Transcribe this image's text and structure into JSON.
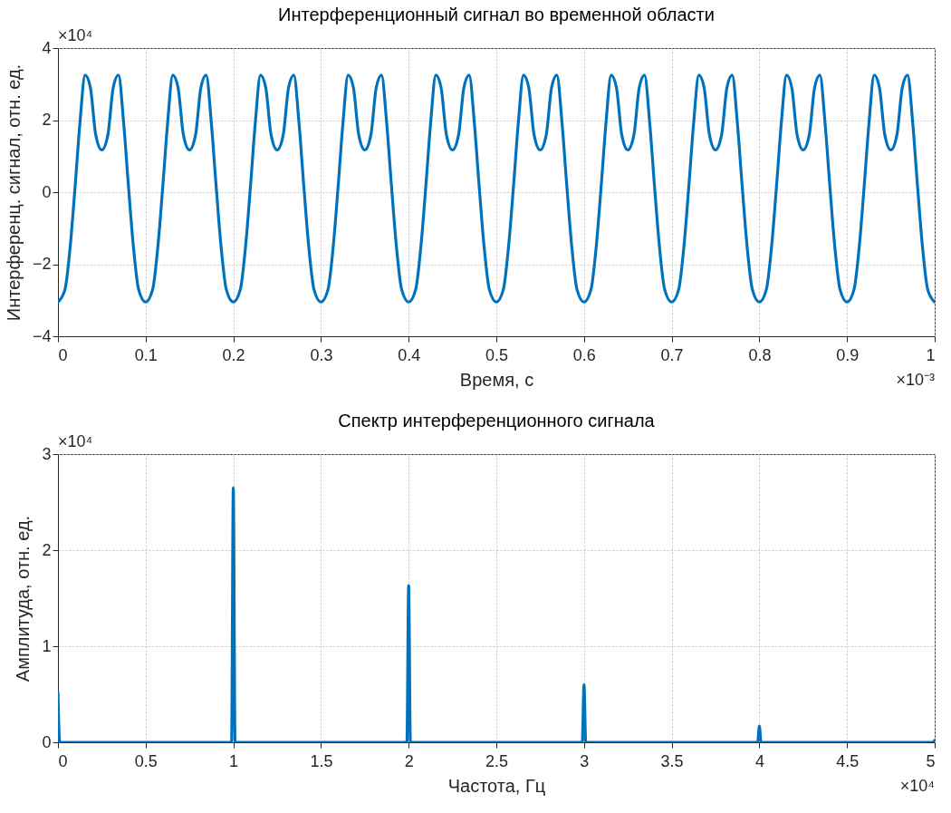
{
  "chart_data": [
    {
      "type": "line",
      "title": "Интерференционный сигнал во временной области",
      "xlabel": "Время, с",
      "ylabel": "Интерференц. сигнал, отн. ед.",
      "annotations": [
        "×10⁴",
        "×10⁻³"
      ],
      "xlim": [
        0,
        1
      ],
      "xticks": [
        0,
        0.1,
        0.2,
        0.3,
        0.4,
        0.5,
        0.6,
        0.7,
        0.8,
        0.9,
        1
      ],
      "ylim": [
        -4,
        4
      ],
      "yticks": [
        -4,
        -2,
        0,
        2,
        4
      ],
      "grid": true,
      "marker": "none",
      "line_style": "solid",
      "series": [
        {
          "color": "#0072bd",
          "x": [
            0,
            0.008,
            0.014,
            0.02,
            0.025,
            0.031,
            0.037,
            0.043,
            0.05,
            0.057,
            0.063,
            0.069,
            0.075,
            0.08,
            0.086,
            0.092,
            0.1,
            0.108,
            0.114,
            0.12,
            0.125,
            0.131,
            0.137,
            0.143,
            0.15,
            0.157,
            0.163,
            0.169,
            0.175,
            0.18,
            0.186,
            0.192,
            0.2,
            0.208,
            0.214,
            0.22,
            0.225,
            0.231,
            0.237,
            0.243,
            0.25,
            0.257,
            0.263,
            0.269,
            0.275,
            0.28,
            0.286,
            0.292,
            0.3,
            0.308,
            0.314,
            0.32,
            0.325,
            0.331,
            0.337,
            0.343,
            0.35,
            0.357,
            0.363,
            0.369,
            0.375,
            0.38,
            0.386,
            0.392,
            0.4,
            0.408,
            0.414,
            0.42,
            0.425,
            0.431,
            0.437,
            0.443,
            0.45,
            0.457,
            0.463,
            0.469,
            0.475,
            0.48,
            0.486,
            0.492,
            0.5,
            0.508,
            0.514,
            0.52,
            0.525,
            0.531,
            0.537,
            0.543,
            0.55,
            0.557,
            0.563,
            0.569,
            0.575,
            0.58,
            0.586,
            0.592,
            0.6,
            0.608,
            0.614,
            0.62,
            0.625,
            0.631,
            0.637,
            0.643,
            0.65,
            0.657,
            0.663,
            0.669,
            0.675,
            0.68,
            0.686,
            0.692,
            0.7,
            0.708,
            0.714,
            0.72,
            0.725,
            0.731,
            0.737,
            0.743,
            0.75,
            0.757,
            0.763,
            0.769,
            0.775,
            0.78,
            0.786,
            0.792,
            0.8,
            0.808,
            0.814,
            0.82,
            0.825,
            0.831,
            0.837,
            0.843,
            0.85,
            0.857,
            0.863,
            0.869,
            0.875,
            0.88,
            0.886,
            0.892,
            0.9,
            0.908,
            0.914,
            0.92,
            0.925,
            0.931,
            0.937,
            0.943,
            0.95,
            0.957,
            0.963,
            0.969,
            0.975,
            0.98,
            0.986,
            0.992,
            1
          ],
          "values": [
            -3.05,
            -2.7,
            -1.5,
            0.3,
            1.9,
            3.25,
            2.9,
            1.6,
            1.17,
            1.6,
            2.9,
            3.25,
            1.9,
            0.3,
            -1.5,
            -2.7,
            -3.05,
            -2.7,
            -1.5,
            0.3,
            1.9,
            3.25,
            2.9,
            1.6,
            1.17,
            1.6,
            2.9,
            3.25,
            1.9,
            0.3,
            -1.5,
            -2.7,
            -3.05,
            -2.7,
            -1.5,
            0.3,
            1.9,
            3.25,
            2.9,
            1.6,
            1.17,
            1.6,
            2.9,
            3.25,
            1.9,
            0.3,
            -1.5,
            -2.7,
            -3.05,
            -2.7,
            -1.5,
            0.3,
            1.9,
            3.25,
            2.9,
            1.6,
            1.17,
            1.6,
            2.9,
            3.25,
            1.9,
            0.3,
            -1.5,
            -2.7,
            -3.05,
            -2.7,
            -1.5,
            0.3,
            1.9,
            3.25,
            2.9,
            1.6,
            1.17,
            1.6,
            2.9,
            3.25,
            1.9,
            0.3,
            -1.5,
            -2.7,
            -3.05,
            -2.7,
            -1.5,
            0.3,
            1.9,
            3.25,
            2.9,
            1.6,
            1.17,
            1.6,
            2.9,
            3.25,
            1.9,
            0.3,
            -1.5,
            -2.7,
            -3.05,
            -2.7,
            -1.5,
            0.3,
            1.9,
            3.25,
            2.9,
            1.6,
            1.17,
            1.6,
            2.9,
            3.25,
            1.9,
            0.3,
            -1.5,
            -2.7,
            -3.05,
            -2.7,
            -1.5,
            0.3,
            1.9,
            3.25,
            2.9,
            1.6,
            1.17,
            1.6,
            2.9,
            3.25,
            1.9,
            0.3,
            -1.5,
            -2.7,
            -3.05,
            -2.7,
            -1.5,
            0.3,
            1.9,
            3.25,
            2.9,
            1.6,
            1.17,
            1.6,
            2.9,
            3.25,
            1.9,
            0.3,
            -1.5,
            -2.7,
            -3.05,
            -2.7,
            -1.5,
            0.3,
            1.9,
            3.25,
            2.9,
            1.6,
            1.17,
            1.6,
            2.9,
            3.25,
            1.9,
            0.3,
            -1.5,
            -2.7,
            -3.05
          ]
        }
      ]
    },
    {
      "type": "line",
      "title": "Спектр интерференционного сигнала",
      "xlabel": "Частота, Гц",
      "ylabel": "Амплитуда, отн. ед.",
      "annotations": [
        "×10⁴",
        "×10⁴"
      ],
      "xlim": [
        0,
        5
      ],
      "xticks": [
        0,
        0.5,
        1,
        1.5,
        2,
        2.5,
        3,
        3.5,
        4,
        4.5,
        5
      ],
      "ylim": [
        0,
        3
      ],
      "yticks": [
        0,
        1,
        2,
        3
      ],
      "grid": true,
      "marker": "none",
      "line_style": "solid",
      "series": [
        {
          "color": "#0072bd",
          "x": [
            0,
            0.01,
            0.99,
            1,
            1.01,
            1.99,
            2,
            2.01,
            2.99,
            3,
            3.01,
            3.99,
            4,
            4.01,
            4.99,
            5
          ],
          "values": [
            0.52,
            0,
            0,
            2.65,
            0,
            0,
            1.63,
            0,
            0,
            0.6,
            0,
            0,
            0.17,
            0,
            0,
            0.02
          ]
        }
      ]
    }
  ]
}
